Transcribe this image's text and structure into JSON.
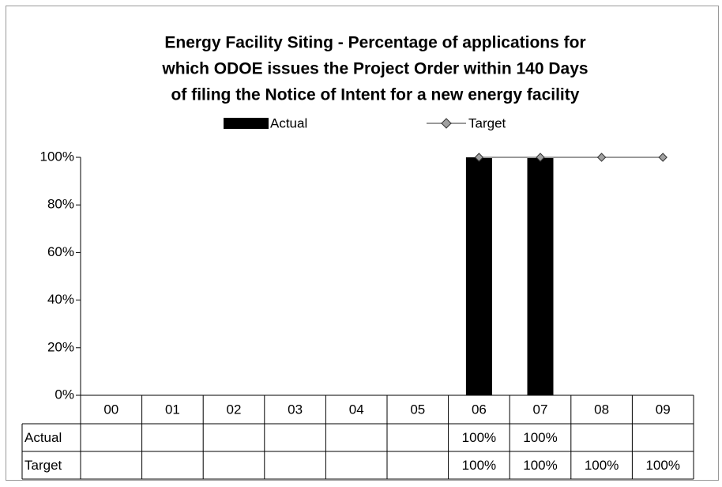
{
  "chart_data": {
    "type": "bar",
    "title": [
      "Energy Facility Siting - Percentage of applications for",
      "which ODOE issues the Project Order within 140 Days",
      "of filing the Notice of Intent for a new energy facility"
    ],
    "categories": [
      "00",
      "01",
      "02",
      "03",
      "04",
      "05",
      "06",
      "07",
      "08",
      "09"
    ],
    "series": [
      {
        "name": "Actual",
        "type": "bar",
        "color": "#000000",
        "values": [
          null,
          null,
          null,
          null,
          null,
          null,
          100,
          100,
          null,
          null
        ],
        "value_labels": [
          null,
          null,
          null,
          null,
          null,
          null,
          "100%",
          "100%",
          null,
          null
        ]
      },
      {
        "name": "Target",
        "type": "line",
        "color": "#999999",
        "marker_color": "#a0a0a0",
        "values": [
          null,
          null,
          null,
          null,
          null,
          null,
          100,
          100,
          100,
          100
        ],
        "value_labels": [
          null,
          null,
          null,
          null,
          null,
          null,
          "100%",
          "100%",
          "100%",
          "100%"
        ]
      }
    ],
    "ylim": [
      0,
      100
    ],
    "yticks": [
      {
        "value": 0,
        "label": "0%"
      },
      {
        "value": 20,
        "label": "20%"
      },
      {
        "value": 40,
        "label": "40%"
      },
      {
        "value": 60,
        "label": "60%"
      },
      {
        "value": 80,
        "label": "80%"
      },
      {
        "value": 100,
        "label": "100%"
      }
    ],
    "legend": "top",
    "data_table": true
  }
}
